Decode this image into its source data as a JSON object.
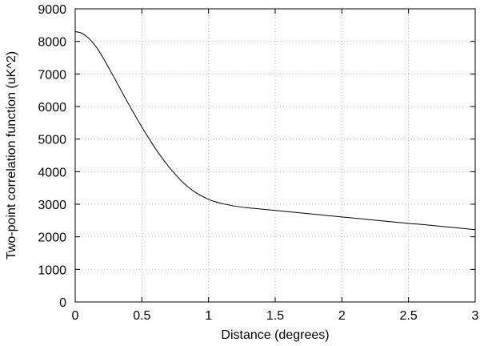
{
  "chart_data": {
    "type": "line",
    "title": "",
    "xlabel": "Distance (degrees)",
    "ylabel": "Two-point correlation function (uK^2)",
    "xlim": [
      0,
      3
    ],
    "ylim": [
      0,
      9000
    ],
    "xticks": [
      0,
      0.5,
      1,
      1.5,
      2,
      2.5,
      3
    ],
    "xtick_labels": [
      "0",
      "0.5",
      "1",
      "1.5",
      "2",
      "2.5",
      "3"
    ],
    "yticks": [
      0,
      1000,
      2000,
      3000,
      4000,
      5000,
      6000,
      7000,
      8000,
      9000
    ],
    "ytick_labels": [
      "0",
      "1000",
      "2000",
      "3000",
      "4000",
      "5000",
      "6000",
      "7000",
      "8000",
      "9000"
    ],
    "grid": true,
    "legend": "none",
    "series": [
      {
        "color": "#000000",
        "x": [
          0,
          0.05,
          0.1,
          0.15,
          0.2,
          0.25,
          0.3,
          0.35,
          0.4,
          0.45,
          0.5,
          0.55,
          0.6,
          0.65,
          0.7,
          0.75,
          0.8,
          0.85,
          0.9,
          0.95,
          1.0,
          1.05,
          1.1,
          1.15,
          1.2,
          1.3,
          1.4,
          1.5,
          1.6,
          1.7,
          1.8,
          1.9,
          2.0,
          2.1,
          2.2,
          2.3,
          2.4,
          2.5,
          2.6,
          2.7,
          2.8,
          2.9,
          3.0
        ],
        "y": [
          8300,
          8250,
          8100,
          7870,
          7560,
          7200,
          6830,
          6450,
          6080,
          5720,
          5370,
          5040,
          4720,
          4430,
          4160,
          3920,
          3700,
          3520,
          3370,
          3250,
          3150,
          3080,
          3020,
          2980,
          2940,
          2890,
          2850,
          2810,
          2770,
          2730,
          2690,
          2650,
          2610,
          2570,
          2530,
          2490,
          2450,
          2410,
          2380,
          2340,
          2300,
          2260,
          2220
        ]
      }
    ]
  }
}
